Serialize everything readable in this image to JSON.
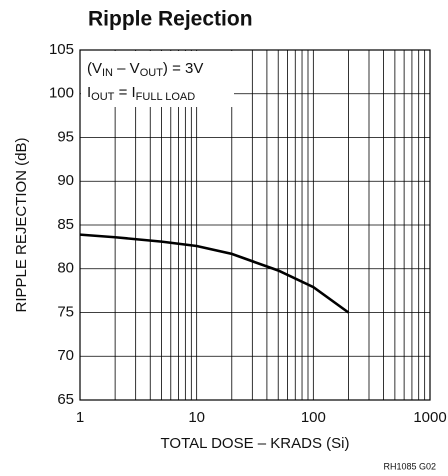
{
  "chart_data": {
    "type": "line",
    "title": "Ripple Rejection",
    "xlabel": "TOTAL DOSE – KRADS (Si)",
    "ylabel": "RIPPLE REJECTION (dB)",
    "x": [
      1,
      2,
      5,
      10,
      20,
      50,
      100,
      200
    ],
    "series": [
      {
        "name": "Ripple Rejection",
        "color": "#000000",
        "values": [
          83.9,
          83.6,
          83.1,
          82.6,
          81.7,
          79.8,
          77.9,
          75
        ]
      }
    ],
    "xscale": "log",
    "xlim": [
      1,
      1000
    ],
    "xticks": [
      1,
      10,
      100,
      1000
    ],
    "xminorticks": [
      2,
      3,
      4,
      5,
      6,
      7,
      8,
      9,
      20,
      30,
      40,
      50,
      60,
      70,
      80,
      90,
      200,
      300,
      400,
      500,
      600,
      700,
      800,
      900
    ],
    "ylim": [
      65,
      105
    ],
    "yticks": [
      65,
      70,
      75,
      80,
      85,
      90,
      95,
      100,
      105
    ],
    "grid": true,
    "annotations": [
      [
        "(V",
        "IN",
        " – V",
        "OUT",
        ") = 3V"
      ],
      [
        "I",
        "OUT",
        " = I",
        "FULL LOAD"
      ]
    ],
    "footnote": "RH1085 G02"
  }
}
